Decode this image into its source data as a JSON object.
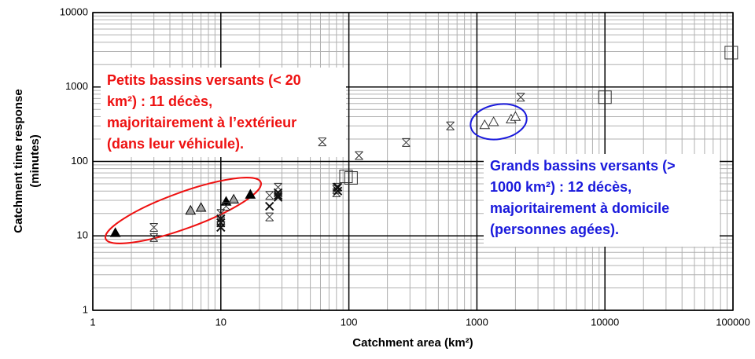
{
  "chart_data": {
    "type": "scatter",
    "xlabel": "Catchment area (km²)",
    "ylabel": [
      "Catchment time response",
      "(minutes)"
    ],
    "log_x": true,
    "log_y": true,
    "grid": true,
    "minor_grid": true,
    "xlim": [
      1,
      100000
    ],
    "xticks": [
      1,
      10,
      100,
      1000,
      10000,
      100000
    ],
    "ylim": [
      1,
      10000
    ],
    "yticks": [
      1,
      10,
      100,
      1000,
      10000
    ],
    "series": [
      {
        "marker": "triangle-filled",
        "color": "#000000",
        "x": [
          1.5,
          11,
          17
        ],
        "values": [
          11,
          29,
          36
        ]
      },
      {
        "marker": "triangle-filled",
        "color": "#a0a0a0",
        "x": [
          5.8,
          7,
          12.6
        ],
        "values": [
          22,
          24,
          31
        ]
      },
      {
        "marker": "triangle-open",
        "color": "#333333",
        "x": [
          1150,
          1350,
          1850,
          2000
        ],
        "values": [
          310,
          340,
          370,
          400
        ]
      },
      {
        "marker": "asterisk",
        "color": "#333333",
        "x": [
          3,
          3,
          10,
          10,
          11,
          24,
          24,
          28,
          62,
          120,
          80,
          80,
          80,
          280,
          620,
          2200
        ],
        "values": [
          13,
          9.5,
          15,
          20,
          25,
          35,
          18,
          45,
          183,
          120,
          45,
          38,
          42,
          180,
          300,
          730
        ]
      },
      {
        "marker": "cross",
        "color": "#111111",
        "x": [
          10,
          10,
          10,
          24,
          28,
          28,
          28,
          82,
          82
        ],
        "values": [
          13,
          15,
          17,
          25,
          33,
          35,
          38,
          45,
          40
        ]
      },
      {
        "marker": "square-open",
        "color": "#333333",
        "x": [
          95,
          104,
          10000,
          97000
        ],
        "values": [
          63,
          60,
          730,
          2900
        ]
      }
    ],
    "annotations": [
      {
        "color": "#ee1111",
        "lines": [
          "Petits bassins versants (< 20",
          "km²) : 11 décès,",
          "majoritairement à l’extérieur",
          "(dans leur véhicule)."
        ]
      },
      {
        "color": "#1a1adc",
        "lines": [
          "Grands bassins versants (>",
          "1000 km²) : 12 décès,",
          "majoritairement à domicile",
          "(personnes agées)."
        ]
      }
    ]
  }
}
